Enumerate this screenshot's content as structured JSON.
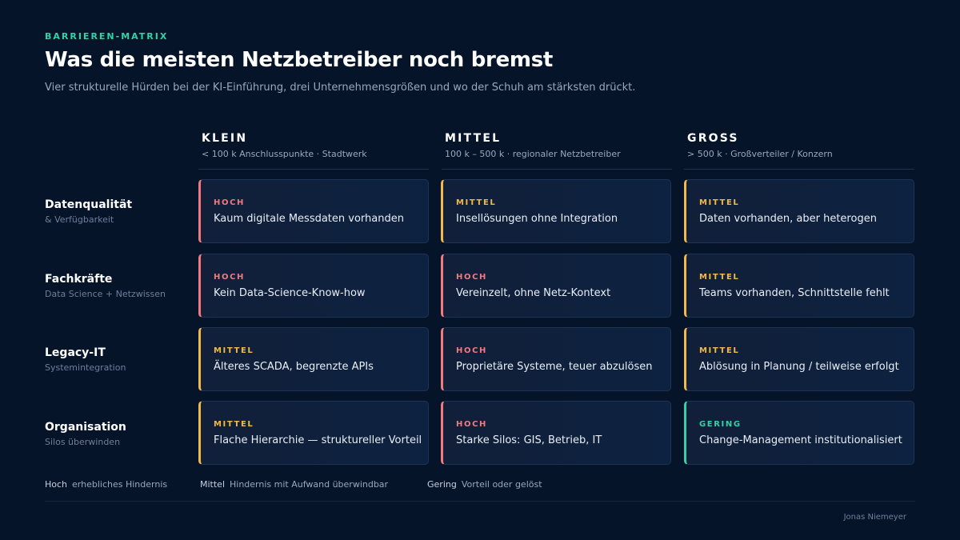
{
  "eyebrow": "BARRIEREN-MATRIX",
  "title": "Was die meisten Netzbetreiber noch bremst",
  "subtitle": "Vier strukturelle Hürden bei der KI-Einführung, drei Unternehmensgrößen und wo der Schuh am stärksten drückt.",
  "colors": {
    "hoch": "#f07a7e",
    "mittel": "#f1b84b",
    "gering": "#34d0a6"
  },
  "columns": [
    {
      "name": "KLEIN",
      "desc": "< 100 k Anschlusspunkte · Stadtwerk"
    },
    {
      "name": "MITTEL",
      "desc": "100 k – 500 k · regionaler Netzbetreiber"
    },
    {
      "name": "GROSS",
      "desc": "> 500 k · Großverteiler / Konzern"
    }
  ],
  "rows": [
    {
      "label": "Datenqualität",
      "sub": "& Verfügbarkeit",
      "cells": [
        {
          "level": "HOCH",
          "kind": "hoch",
          "text": "Kaum digitale Messdaten vorhanden"
        },
        {
          "level": "MITTEL",
          "kind": "mittel",
          "text": "Insellösungen ohne Integration"
        },
        {
          "level": "MITTEL",
          "kind": "mittel",
          "text": "Daten vorhanden, aber heterogen"
        }
      ]
    },
    {
      "label": "Fachkräfte",
      "sub": "Data Science + Netzwissen",
      "cells": [
        {
          "level": "HOCH",
          "kind": "hoch",
          "text": "Kein Data-Science-Know-how"
        },
        {
          "level": "HOCH",
          "kind": "hoch",
          "text": "Vereinzelt, ohne Netz-Kontext"
        },
        {
          "level": "MITTEL",
          "kind": "mittel",
          "text": "Teams vorhanden, Schnittstelle fehlt"
        }
      ]
    },
    {
      "label": "Legacy-IT",
      "sub": "Systemintegration",
      "cells": [
        {
          "level": "MITTEL",
          "kind": "mittel",
          "text": "Älteres SCADA, begrenzte APIs"
        },
        {
          "level": "HOCH",
          "kind": "hoch",
          "text": "Proprietäre Systeme, teuer abzulösen"
        },
        {
          "level": "MITTEL",
          "kind": "mittel",
          "text": "Ablösung in Planung / teilweise erfolgt"
        }
      ]
    },
    {
      "label": "Organisation",
      "sub": "Silos überwinden",
      "cells": [
        {
          "level": "MITTEL",
          "kind": "mittel",
          "text": "Flache Hierarchie — struktureller Vorteil"
        },
        {
          "level": "HOCH",
          "kind": "hoch",
          "text": "Starke Silos: GIS, Betrieb, IT"
        },
        {
          "level": "GERING",
          "kind": "gering",
          "text": "Change-Management institutionalisiert"
        }
      ]
    }
  ],
  "legend": [
    {
      "key": "Hoch",
      "text": "erhebliches Hindernis"
    },
    {
      "key": "Mittel",
      "text": "Hindernis mit Aufwand überwindbar"
    },
    {
      "key": "Gering",
      "text": "Vorteil oder gelöst"
    }
  ],
  "author": "Jonas Niemeyer"
}
